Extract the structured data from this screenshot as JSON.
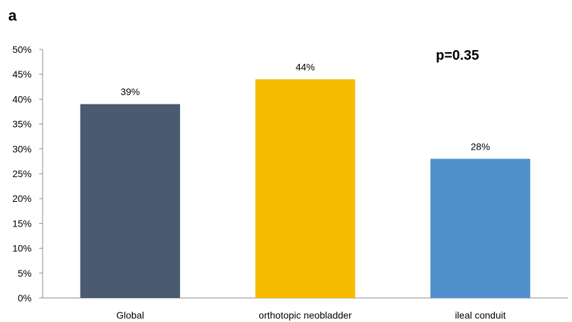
{
  "panel_label": "a",
  "chart_data": {
    "type": "bar",
    "categories": [
      "Global",
      "orthotopic neobladder",
      "ileal conduit"
    ],
    "values": [
      39,
      44,
      28
    ],
    "value_labels": [
      "39%",
      "44%",
      "28%"
    ],
    "colors": [
      "#4a5a70",
      "#f5bb00",
      "#5091cd"
    ],
    "ylim": [
      0,
      50
    ],
    "ytick_values": [
      0,
      5,
      10,
      15,
      20,
      25,
      30,
      35,
      40,
      45,
      50
    ],
    "ytick_labels": [
      "0%",
      "5%",
      "10%",
      "15%",
      "20%",
      "25%",
      "30%",
      "35%",
      "40%",
      "45%",
      "50%"
    ],
    "annotation": "p=0.35",
    "grid": false,
    "legend": "none"
  }
}
